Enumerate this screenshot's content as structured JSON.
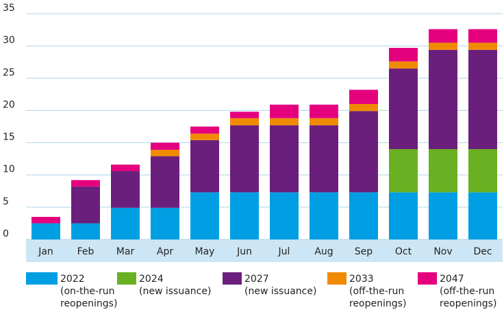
{
  "chart_data": {
    "type": "stacked_bar",
    "categories": [
      "Jan",
      "Feb",
      "Mar",
      "Apr",
      "May",
      "Jun",
      "Jul",
      "Aug",
      "Sep",
      "Oct",
      "Nov",
      "Dec"
    ],
    "series": [
      {
        "name": "2022\n(on-the-run\nreopenings)",
        "color": "#009fe3",
        "values": [
          2.5,
          2.5,
          4.9,
          4.9,
          7.3,
          7.3,
          7.3,
          7.3,
          7.3,
          7.3,
          7.3,
          7.3
        ]
      },
      {
        "name": "2024\n(new issuance)",
        "color": "#6ab023",
        "values": [
          0,
          0,
          0,
          0,
          0,
          0,
          0,
          0,
          0,
          6.7,
          6.7,
          6.7
        ]
      },
      {
        "name": "2027\n(new issuance)",
        "color": "#6b1f7c",
        "values": [
          0,
          5.7,
          5.7,
          8.0,
          8.1,
          10.4,
          10.4,
          10.4,
          12.6,
          12.5,
          15.4,
          15.4
        ]
      },
      {
        "name": "2033\n(off-the-run\nreopenings)",
        "color": "#f08a00",
        "values": [
          0,
          0,
          0,
          1.0,
          1.0,
          1.1,
          1.1,
          1.1,
          1.1,
          1.1,
          1.1,
          1.1
        ]
      },
      {
        "name": "2047\n(off-the-run\nreopenings)",
        "color": "#e5007e",
        "values": [
          1.0,
          1.0,
          1.0,
          1.1,
          1.1,
          1.0,
          2.1,
          2.1,
          2.2,
          2.1,
          2.1,
          2.1
        ]
      }
    ],
    "ylim": [
      0,
      35
    ],
    "yticks": [
      0,
      5,
      10,
      15,
      20,
      25,
      30,
      35
    ],
    "grid": true
  }
}
